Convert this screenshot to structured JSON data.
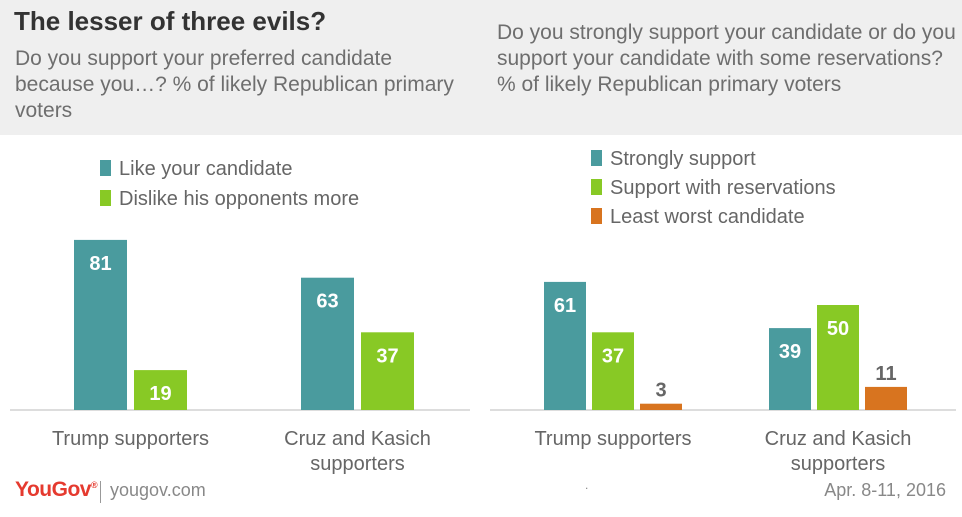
{
  "header": {
    "title": "The lesser of three evils?"
  },
  "chart_data": [
    {
      "type": "bar",
      "subtitle": "Do you support your preferred candidate because you…? % of likely Republican primary voters",
      "categories": [
        "Trump supporters",
        "Cruz and Kasich supporters"
      ],
      "series": [
        {
          "name": "Like your candidate",
          "values": [
            81,
            63
          ],
          "color": "#4a9b9e"
        },
        {
          "name": "Dislike his opponents more",
          "values": [
            19,
            37
          ],
          "color": "#88c925"
        }
      ],
      "ylim": [
        0,
        100
      ],
      "legend_position": "top"
    },
    {
      "type": "bar",
      "subtitle": "Do you strongly support your candidate or do you support your candidate with some reservations? % of likely Republican primary voters",
      "categories": [
        "Trump supporters",
        "Cruz and Kasich supporters"
      ],
      "series": [
        {
          "name": "Strongly support",
          "values": [
            61,
            39
          ],
          "color": "#4a9b9e"
        },
        {
          "name": "Support with reservations",
          "values": [
            37,
            50
          ],
          "color": "#88c925"
        },
        {
          "name": "Least worst candidate",
          "values": [
            3,
            11
          ],
          "color": "#d8741f"
        }
      ],
      "ylim": [
        0,
        100
      ],
      "legend_position": "top"
    }
  ],
  "footer": {
    "brand": "YouGov",
    "site": "yougov.com",
    "date": "Apr. 8-11, 2016",
    "stray_mark": "."
  }
}
